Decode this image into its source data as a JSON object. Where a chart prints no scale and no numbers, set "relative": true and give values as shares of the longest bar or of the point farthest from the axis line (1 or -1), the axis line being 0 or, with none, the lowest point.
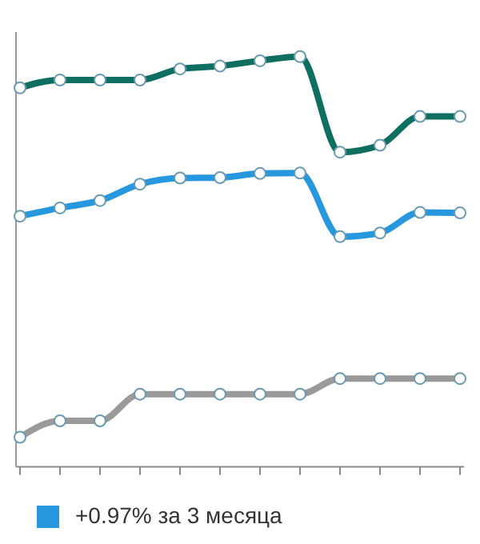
{
  "chart_data": {
    "type": "line",
    "relative": true,
    "categories": [
      null,
      null,
      null,
      null,
      null,
      null,
      null,
      null,
      null,
      null,
      null,
      null
    ],
    "legend": "bottom left",
    "marker": "circle",
    "series": [
      {
        "color": "#0e6e60",
        "values": [
          0.924,
          0.943,
          0.943,
          0.943,
          0.97,
          0.977,
          0.99,
          1.0,
          0.767,
          0.784,
          0.854,
          0.854
        ]
      },
      {
        "name": "+0.97% за 3 месяца",
        "color": "#2798de",
        "values": [
          0.611,
          0.631,
          0.649,
          0.689,
          0.704,
          0.705,
          0.715,
          0.716,
          0.561,
          0.57,
          0.62,
          0.619
        ]
      },
      {
        "color": "#9a9a9a",
        "values": [
          0.072,
          0.112,
          0.112,
          0.177,
          0.177,
          0.177,
          0.177,
          0.177,
          0.215,
          0.215,
          0.215,
          0.215
        ]
      }
    ]
  }
}
